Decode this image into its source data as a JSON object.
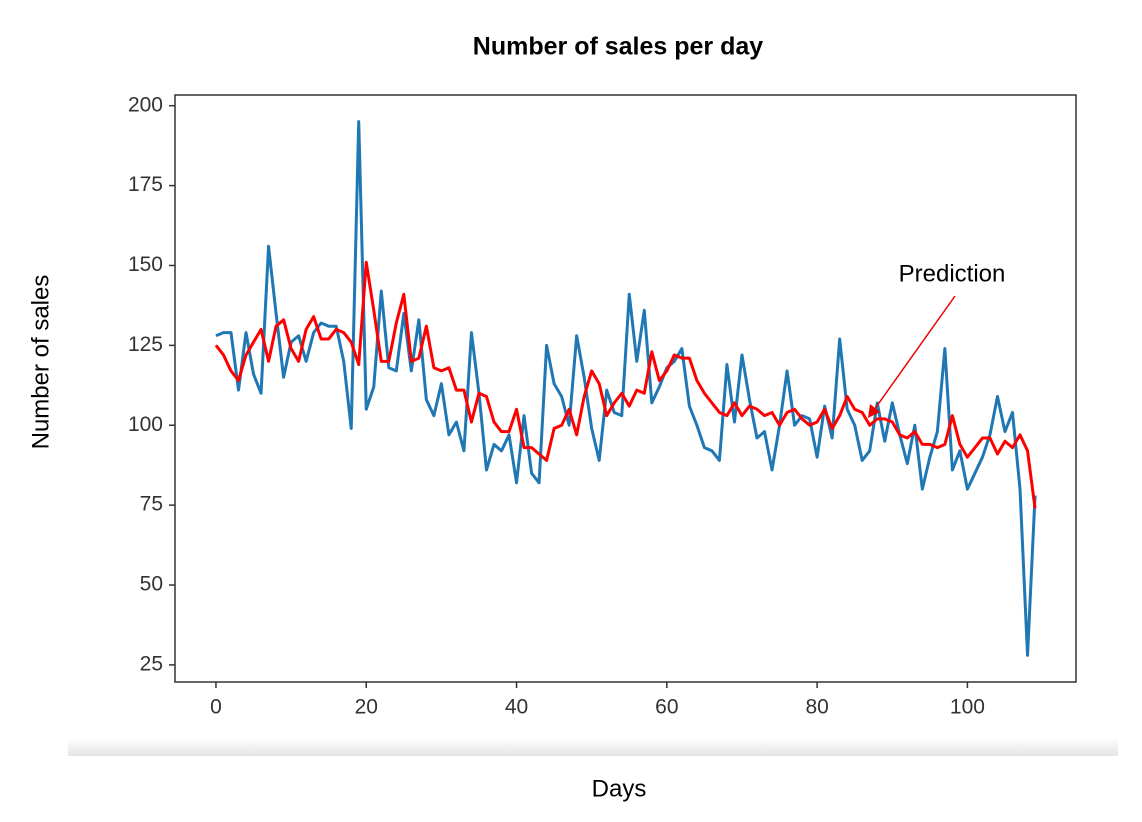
{
  "chart_data": {
    "type": "line",
    "title": "Number of sales per day",
    "xlabel": "Days",
    "ylabel": "Number of sales",
    "annotation": "Prediction",
    "x": [
      0,
      1,
      2,
      3,
      4,
      5,
      6,
      7,
      8,
      9,
      10,
      11,
      12,
      13,
      14,
      15,
      16,
      17,
      18,
      19,
      20,
      21,
      22,
      23,
      24,
      25,
      26,
      27,
      28,
      29,
      30,
      31,
      32,
      33,
      34,
      35,
      36,
      37,
      38,
      39,
      40,
      41,
      42,
      43,
      44,
      45,
      46,
      47,
      48,
      49,
      50,
      51,
      52,
      53,
      54,
      55,
      56,
      57,
      58,
      59,
      60,
      61,
      62,
      63,
      64,
      65,
      66,
      67,
      68,
      69,
      70,
      71,
      72,
      73,
      74,
      75,
      76,
      77,
      78,
      79,
      80,
      81,
      82,
      83,
      84,
      85,
      86,
      87,
      88,
      89,
      90,
      91,
      92,
      93,
      94,
      95,
      96,
      97,
      98,
      99,
      100,
      101,
      102,
      103,
      104,
      105,
      106,
      107,
      108,
      109
    ],
    "series": [
      {
        "color": "#1f77b4",
        "values": [
          128,
          129,
          129,
          111,
          129,
          116,
          110,
          156,
          135,
          115,
          126,
          128,
          120,
          129,
          132,
          131,
          131,
          120,
          99,
          195,
          105,
          112,
          142,
          118,
          117,
          135,
          117,
          133,
          108,
          103,
          113,
          97,
          101,
          92,
          129,
          110,
          86,
          94,
          92,
          97,
          82,
          103,
          85,
          82,
          125,
          113,
          109,
          100,
          128,
          115,
          99,
          89,
          111,
          104,
          103,
          141,
          120,
          136,
          107,
          112,
          118,
          120,
          124,
          106,
          100,
          93,
          92,
          89,
          119,
          101,
          122,
          108,
          96,
          98,
          86,
          100,
          117,
          100,
          103,
          102,
          90,
          106,
          96,
          127,
          105,
          100,
          89,
          92,
          107,
          95,
          107,
          97,
          88,
          100,
          80,
          90,
          98,
          124,
          86,
          92,
          80,
          85,
          90,
          97,
          109,
          98,
          104,
          80,
          28,
          78
        ]
      },
      {
        "color": "#ff0000",
        "values": [
          125,
          122,
          117,
          114,
          122,
          126,
          130,
          120,
          131,
          133,
          124,
          120,
          130,
          134,
          127,
          127,
          130,
          129,
          126,
          119,
          151,
          136,
          120,
          120,
          132,
          141,
          120,
          121,
          131,
          118,
          117,
          118,
          111,
          111,
          101,
          110,
          109,
          101,
          98,
          98,
          105,
          93,
          93,
          91,
          89,
          99,
          100,
          105,
          97,
          109,
          117,
          113,
          103,
          107,
          110,
          106,
          111,
          110,
          123,
          114,
          117,
          122,
          121,
          121,
          114,
          110,
          107,
          104,
          103,
          107,
          103,
          106,
          105,
          103,
          104,
          100,
          104,
          105,
          102,
          100,
          101,
          105,
          99,
          103,
          109,
          105,
          104,
          100,
          102,
          102,
          101,
          97,
          96,
          98,
          94,
          94,
          93,
          94,
          103,
          94,
          90,
          93,
          96,
          96,
          91,
          95,
          93,
          97,
          92,
          74
        ]
      }
    ],
    "xlim": [
      -5.45,
      114.45
    ],
    "ylim": [
      19.65,
      203.35
    ],
    "xticks": [
      0,
      20,
      40,
      60,
      80,
      100
    ],
    "yticks": [
      25,
      50,
      75,
      100,
      125,
      150,
      175,
      200
    ]
  }
}
